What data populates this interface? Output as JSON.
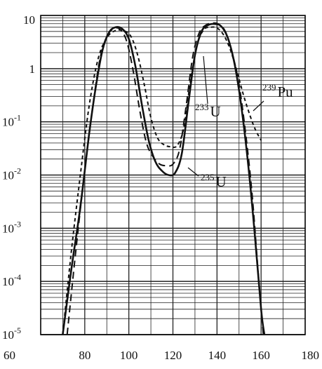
{
  "chart_data": {
    "type": "line",
    "title": "",
    "xlabel": "",
    "ylabel": "",
    "xlim": [
      60,
      180
    ],
    "ylim": [
      1e-05,
      10
    ],
    "y_scale": "log",
    "grid": true,
    "x_ticks": [
      {
        "value": 60,
        "label": "60"
      },
      {
        "value": 80,
        "label": "80"
      },
      {
        "value": 100,
        "label": "100"
      },
      {
        "value": 120,
        "label": "120"
      },
      {
        "value": 140,
        "label": "140"
      },
      {
        "value": 160,
        "label": "160"
      },
      {
        "value": 180,
        "label": "180"
      }
    ],
    "y_ticks": [
      {
        "value": 10,
        "base": "10",
        "exp": ""
      },
      {
        "value": 1,
        "base": "1",
        "exp": ""
      },
      {
        "value": 0.1,
        "base": "10",
        "exp": "-1"
      },
      {
        "value": 0.01,
        "base": "10",
        "exp": "-2"
      },
      {
        "value": 0.001,
        "base": "10",
        "exp": "-3"
      },
      {
        "value": 0.0001,
        "base": "10",
        "exp": "-4"
      },
      {
        "value": 1e-05,
        "base": "10",
        "exp": "-5"
      }
    ],
    "series": [
      {
        "name_sup": "235",
        "name_main": "U",
        "style": "solid",
        "color": "#111111",
        "x": [
          70,
          74,
          78,
          82,
          85,
          88,
          91,
          94,
          97,
          100,
          103,
          106,
          109,
          112,
          115,
          118,
          121,
          124,
          127,
          130,
          133,
          136,
          139,
          142,
          145,
          148,
          151,
          154,
          157,
          160,
          161.5
        ],
        "y": [
          1e-05,
          0.00018,
          0.0025,
          0.06,
          0.45,
          2.2,
          4.8,
          6.0,
          5.6,
          3.6,
          1.1,
          0.2,
          0.045,
          0.018,
          0.012,
          0.01,
          0.011,
          0.025,
          0.22,
          1.8,
          5.0,
          6.6,
          6.9,
          6.2,
          3.7,
          1.2,
          0.2,
          0.018,
          0.0009,
          3e-05,
          1e-05
        ]
      },
      {
        "name_sup": "233",
        "name_main": "U",
        "style": "long-dash",
        "color": "#111111",
        "x": [
          72,
          76,
          80,
          84,
          87,
          90,
          93,
          96,
          99,
          102,
          105,
          108,
          111,
          114,
          117,
          120,
          123,
          126,
          129,
          132,
          135,
          138,
          141,
          144,
          147,
          150,
          153,
          156,
          159,
          161
        ],
        "y": [
          1e-05,
          0.0004,
          0.012,
          0.25,
          1.6,
          4.0,
          5.6,
          5.5,
          3.3,
          0.9,
          0.16,
          0.04,
          0.022,
          0.016,
          0.015,
          0.016,
          0.03,
          0.2,
          1.7,
          4.8,
          6.6,
          7.2,
          6.8,
          4.8,
          1.9,
          0.5,
          0.06,
          0.004,
          0.0001,
          1e-05
        ]
      },
      {
        "name_sup": "239",
        "name_main": "Pu",
        "style": "short-dash",
        "color": "#111111",
        "x": [
          70,
          74,
          78,
          82,
          86,
          90,
          94,
          98,
          101,
          104,
          107,
          110,
          113,
          116,
          119,
          122,
          125,
          128,
          131,
          134,
          137,
          140,
          143,
          146,
          149,
          152,
          155,
          157.5,
          160
        ],
        "y": [
          1e-05,
          0.0004,
          0.01,
          0.2,
          1.5,
          3.8,
          5.2,
          5.1,
          4.0,
          1.8,
          0.5,
          0.12,
          0.05,
          0.037,
          0.034,
          0.036,
          0.08,
          0.6,
          2.8,
          5.4,
          6.0,
          5.8,
          4.3,
          2.3,
          0.9,
          0.32,
          0.13,
          0.07,
          0.045
        ]
      }
    ]
  }
}
